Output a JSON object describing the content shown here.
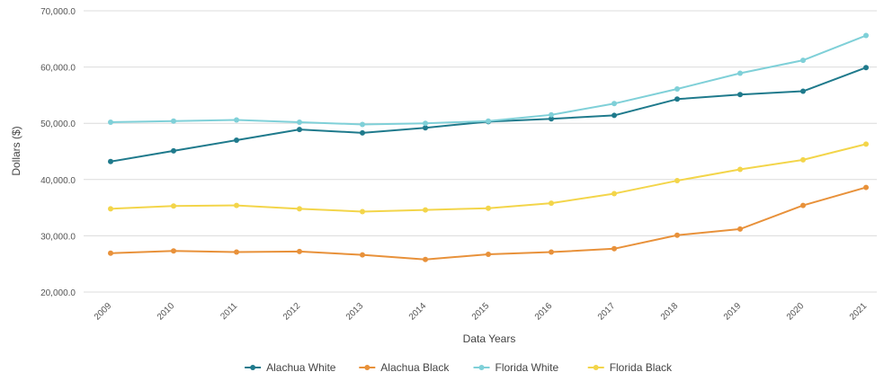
{
  "chart_data": {
    "type": "line",
    "xlabel": "Data Years",
    "ylabel": "Dollars ($)",
    "categories": [
      "2009",
      "2010",
      "2011",
      "2012",
      "2013",
      "2014",
      "2015",
      "2016",
      "2017",
      "2018",
      "2019",
      "2020",
      "2021"
    ],
    "y_ticks": [
      "20,000.0",
      "30,000.0",
      "40,000.0",
      "50,000.0",
      "60,000.0",
      "70,000.0"
    ],
    "ylim": [
      20000,
      70000
    ],
    "grid": true,
    "legend_position": "bottom",
    "series": [
      {
        "name": "Alachua White",
        "color": "#1f7a8c",
        "values": [
          43200,
          45100,
          47000,
          48900,
          48300,
          49200,
          50300,
          50800,
          51400,
          54300,
          55100,
          55700,
          59900
        ]
      },
      {
        "name": "Alachua Black",
        "color": "#e8913a",
        "values": [
          26900,
          27300,
          27100,
          27200,
          26600,
          25800,
          26700,
          27100,
          27700,
          30100,
          31200,
          35400,
          38600
        ]
      },
      {
        "name": "Florida White",
        "color": "#7fd0d8",
        "values": [
          50200,
          50400,
          50600,
          50200,
          49800,
          50000,
          50400,
          51500,
          53500,
          56100,
          58900,
          61200,
          65600
        ]
      },
      {
        "name": "Florida Black",
        "color": "#f3d54a",
        "values": [
          34800,
          35300,
          35400,
          34800,
          34300,
          34600,
          34900,
          35800,
          37500,
          39800,
          41800,
          43500,
          46300
        ]
      }
    ]
  }
}
